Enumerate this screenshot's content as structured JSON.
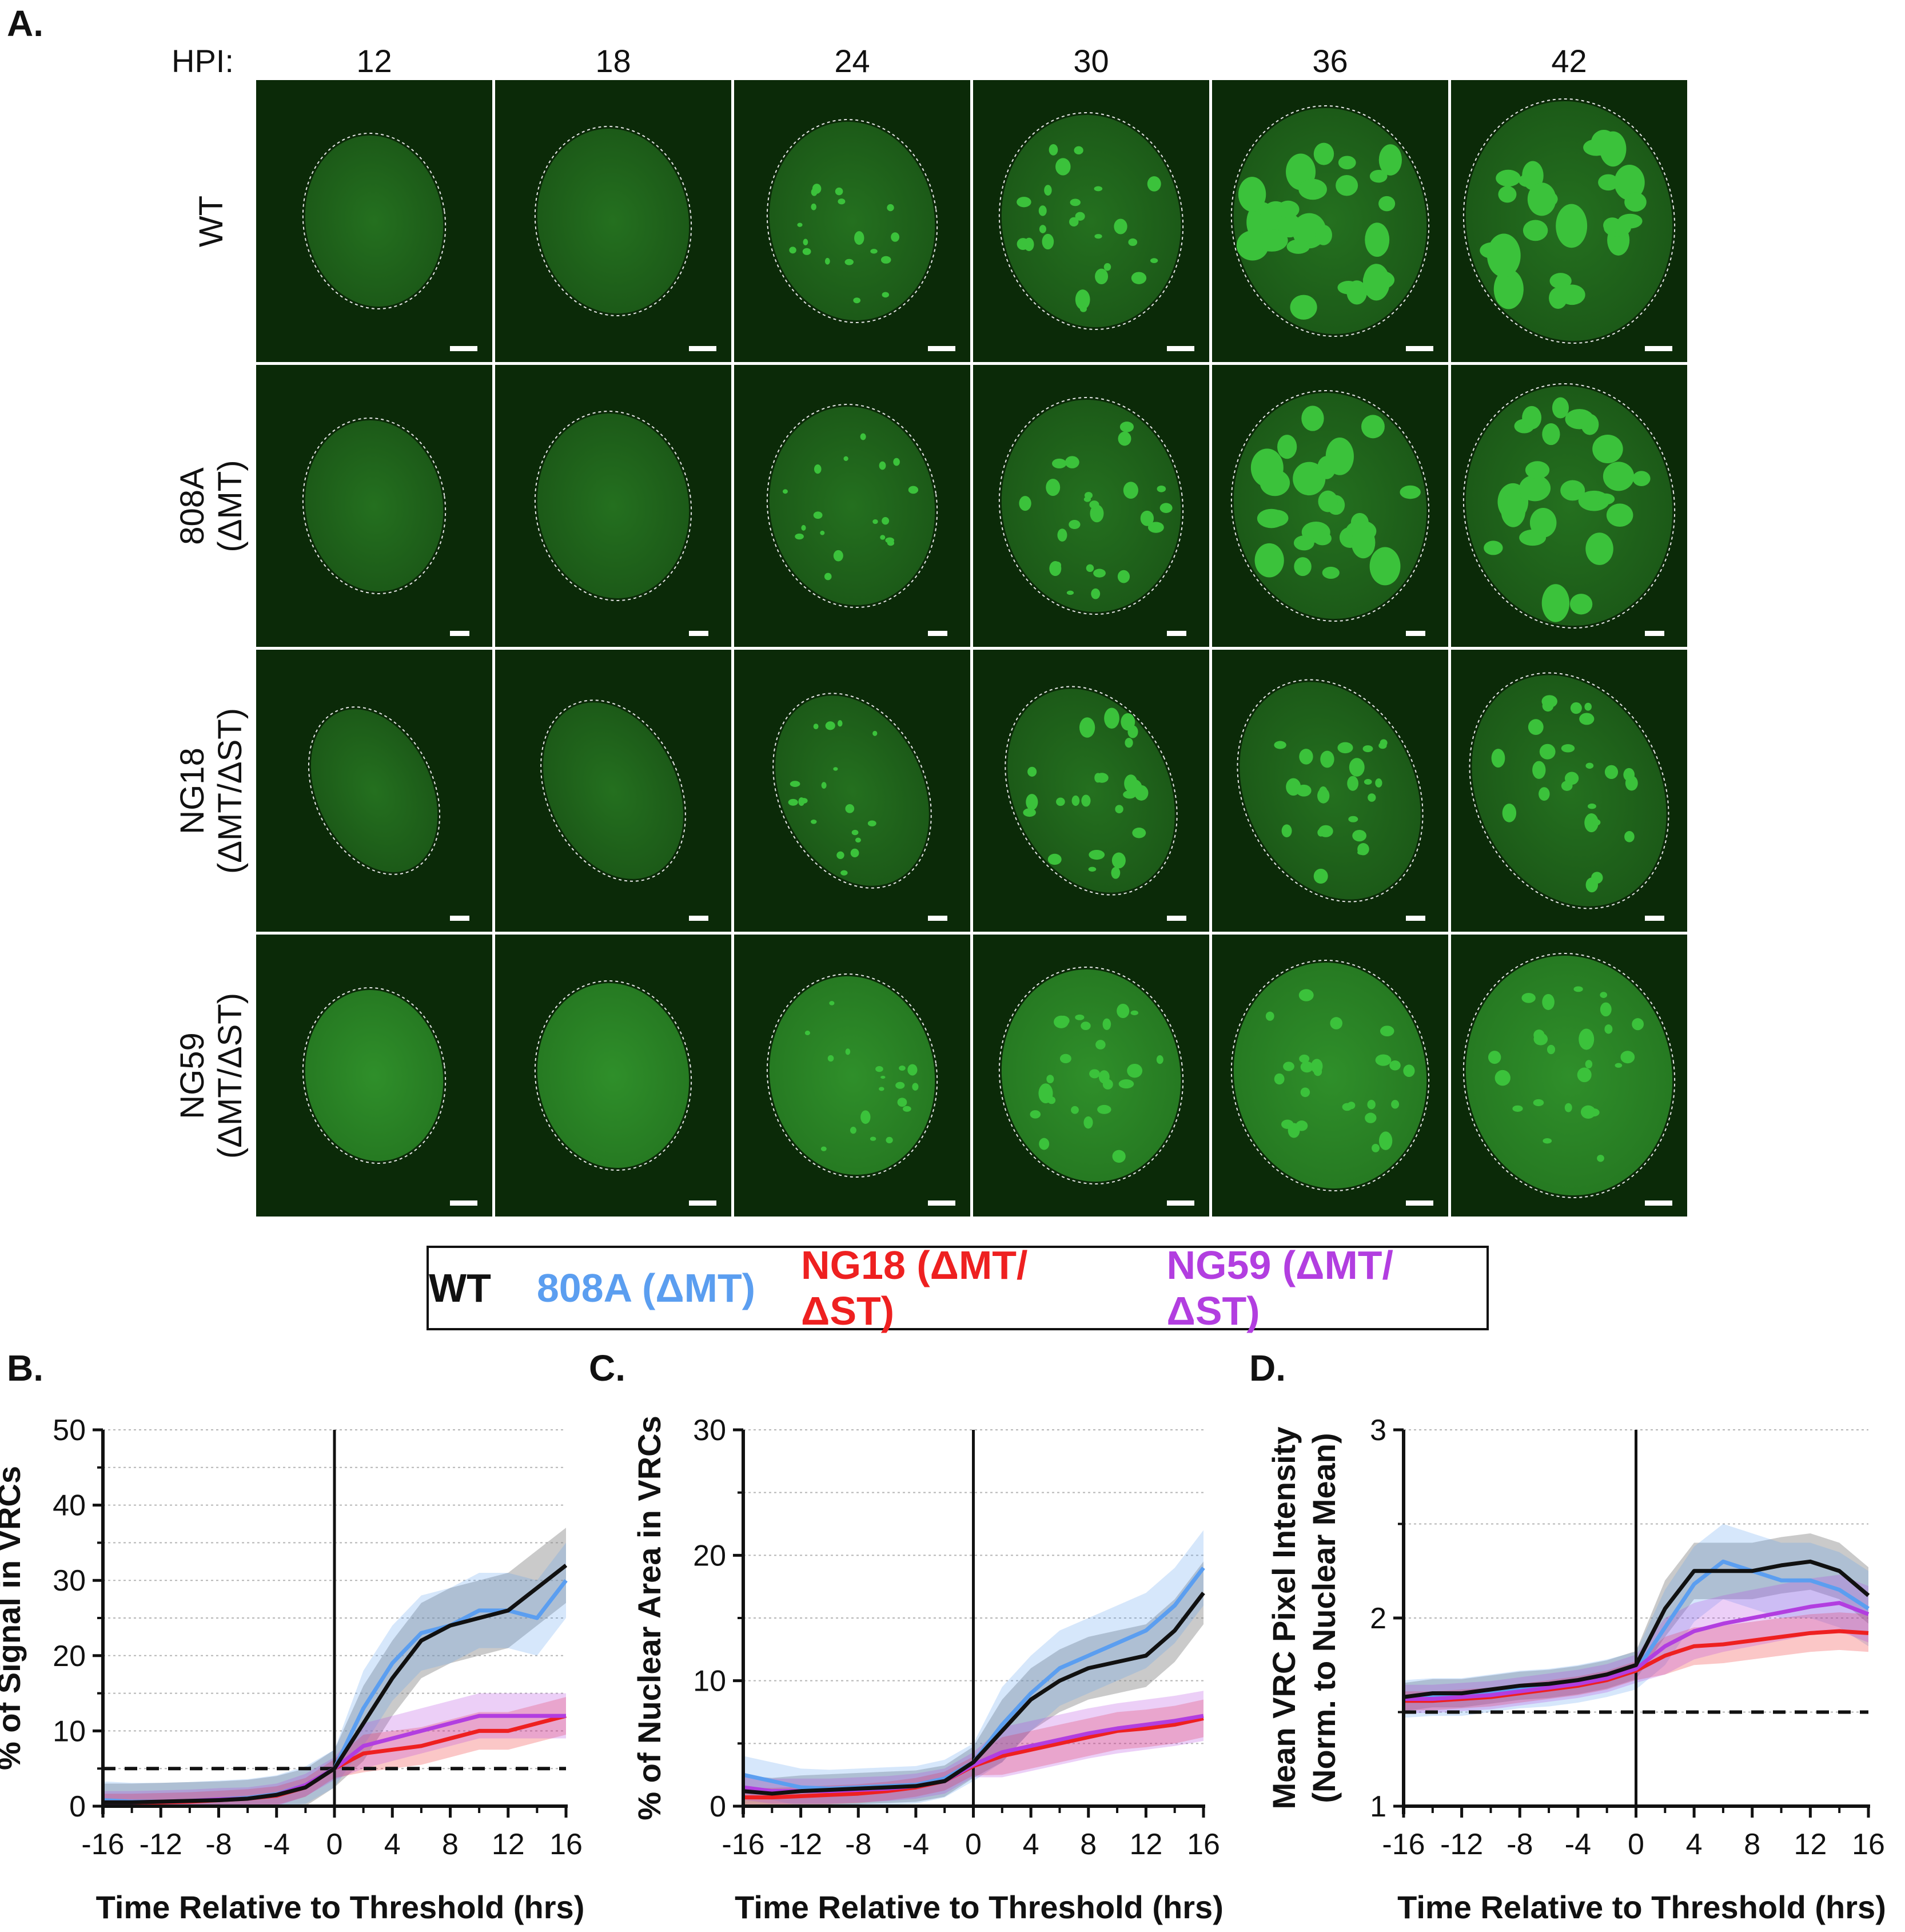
{
  "panel_labels": {
    "a": "A.",
    "b": "B.",
    "c": "C.",
    "d": "D."
  },
  "hpi": {
    "label": "HPI:",
    "values": [
      "12",
      "18",
      "24",
      "30",
      "36",
      "42"
    ]
  },
  "rows": [
    {
      "line1": "WT",
      "line2": ""
    },
    {
      "line1": "808A",
      "line2": "(ΔMT)"
    },
    {
      "line1": "NG18",
      "line2": "(ΔMT/ΔST)"
    },
    {
      "line1": "NG59",
      "line2": "(ΔMT/ΔST)"
    }
  ],
  "colors": {
    "WT": "#111111",
    "808A": "#5b9ef0",
    "NG18": "#ee2020",
    "NG59": "#b23ee0",
    "cell": "#3bc23b"
  },
  "legend": [
    {
      "label": "WT",
      "color": "#111111"
    },
    {
      "label": "808A (ΔMT)",
      "color": "#5b9ef0"
    },
    {
      "label": "NG18 (ΔMT/ΔST)",
      "color": "#ee2020"
    },
    {
      "label": "NG59 (ΔMT/ΔST)",
      "color": "#b23ee0"
    }
  ],
  "chart_data": [
    {
      "id": "b",
      "type": "line",
      "ylabel": "% of Signal in VRCs",
      "xlabel": "Time Relative to Threshold  (hrs)",
      "xlim": [
        -16,
        16
      ],
      "ylim": [
        0,
        50
      ],
      "xticks": [
        "-16",
        "-12",
        "-8",
        "-4",
        "0",
        "4",
        "8",
        "12",
        "16"
      ],
      "yticks": [
        "0",
        "10",
        "20",
        "30",
        "40",
        "50"
      ],
      "threshold": 5,
      "grid": true,
      "x": [
        -16,
        -14,
        -12,
        -10,
        -8,
        -6,
        -4,
        -2,
        0,
        2,
        4,
        6,
        8,
        10,
        12,
        14,
        16
      ],
      "series": [
        {
          "name": "WT",
          "values": [
            0.5,
            0.5,
            0.6,
            0.7,
            0.8,
            1.0,
            1.5,
            2.5,
            5,
            11,
            17,
            22,
            24,
            25,
            26,
            29,
            32
          ],
          "band": 5
        },
        {
          "name": "808A (ΔMT)",
          "values": [
            0.8,
            0.6,
            0.6,
            0.7,
            0.9,
            1.1,
            1.6,
            2.8,
            5,
            13,
            19,
            23,
            24,
            26,
            26,
            25,
            30
          ],
          "band": 5
        },
        {
          "name": "NG18 (ΔMT/ΔST)",
          "values": [
            0.4,
            0.4,
            0.5,
            0.6,
            0.8,
            1.0,
            1.4,
            2.5,
            5,
            7,
            7.5,
            8,
            9,
            10,
            10,
            11,
            12
          ],
          "band": 2.5
        },
        {
          "name": "NG59 (ΔMT/ΔST)",
          "values": [
            0.5,
            0.5,
            0.6,
            0.7,
            0.9,
            1.0,
            1.5,
            2.8,
            5,
            8,
            9,
            10,
            11,
            12,
            12,
            12,
            12
          ],
          "band": 3
        }
      ]
    },
    {
      "id": "c",
      "type": "line",
      "ylabel": "% of Nuclear Area in VRCs",
      "xlabel": "Time Relative to Threshold  (hrs)",
      "xlim": [
        -16,
        16
      ],
      "ylim": [
        0,
        30
      ],
      "xticks": [
        "-16",
        "-12",
        "-8",
        "-4",
        "0",
        "4",
        "8",
        "12",
        "16"
      ],
      "yticks": [
        "0",
        "10",
        "20",
        "30"
      ],
      "threshold": null,
      "grid": true,
      "x": [
        -16,
        -14,
        -12,
        -10,
        -8,
        -6,
        -4,
        -2,
        0,
        2,
        4,
        6,
        8,
        10,
        12,
        14,
        16
      ],
      "series": [
        {
          "name": "WT",
          "values": [
            1.2,
            1.0,
            1.2,
            1.3,
            1.4,
            1.5,
            1.6,
            2.0,
            3.5,
            6,
            8.5,
            10,
            11,
            11.5,
            12,
            14,
            17
          ],
          "band": 2.5
        },
        {
          "name": "808A (ΔMT)",
          "values": [
            2.5,
            2.0,
            1.5,
            1.4,
            1.5,
            1.6,
            1.7,
            2.2,
            3.5,
            6.5,
            9,
            11,
            12,
            13,
            14,
            16,
            19
          ],
          "band": 3
        },
        {
          "name": "NG18 (ΔMT/ΔST)",
          "values": [
            0.7,
            0.7,
            0.8,
            0.9,
            1.0,
            1.2,
            1.5,
            2.0,
            3.2,
            4.0,
            4.5,
            5.0,
            5.5,
            6.0,
            6.2,
            6.5,
            7.0
          ],
          "band": 1.5
        },
        {
          "name": "NG59 (ΔMT/ΔST)",
          "values": [
            1.5,
            1.2,
            1.2,
            1.2,
            1.3,
            1.4,
            1.6,
            2.0,
            3.3,
            4.3,
            4.8,
            5.3,
            5.8,
            6.2,
            6.5,
            6.8,
            7.2
          ],
          "band": 2
        }
      ]
    },
    {
      "id": "d",
      "type": "line",
      "ylabel": "Mean VRC Pixel Intensity",
      "ylabel2": "(Norm. to Nuclear Mean)",
      "xlabel": "Time Relative to Threshold  (hrs)",
      "xlim": [
        -16,
        16
      ],
      "ylim": [
        1,
        3
      ],
      "xticks": [
        "-16",
        "-12",
        "-8",
        "-4",
        "0",
        "4",
        "8",
        "12",
        "16"
      ],
      "yticks": [
        "1",
        "2",
        "3"
      ],
      "threshold": 1.5,
      "grid": true,
      "x": [
        -16,
        -14,
        -12,
        -10,
        -8,
        -6,
        -4,
        -2,
        0,
        2,
        4,
        6,
        8,
        10,
        12,
        14,
        16
      ],
      "series": [
        {
          "name": "WT",
          "values": [
            1.58,
            1.6,
            1.6,
            1.62,
            1.64,
            1.65,
            1.67,
            1.7,
            1.75,
            2.05,
            2.25,
            2.25,
            2.25,
            2.28,
            2.3,
            2.25,
            2.12
          ],
          "band": 0.15
        },
        {
          "name": "808A (ΔMT)",
          "values": [
            1.57,
            1.58,
            1.58,
            1.6,
            1.62,
            1.63,
            1.65,
            1.68,
            1.72,
            1.95,
            2.18,
            2.3,
            2.25,
            2.2,
            2.2,
            2.15,
            2.05
          ],
          "band": 0.2
        },
        {
          "name": "NG18 (ΔMT/ΔST)",
          "values": [
            1.56,
            1.56,
            1.57,
            1.58,
            1.6,
            1.62,
            1.64,
            1.67,
            1.72,
            1.8,
            1.85,
            1.86,
            1.88,
            1.9,
            1.92,
            1.93,
            1.92
          ],
          "band": 0.1
        },
        {
          "name": "NG59 (ΔMT/ΔST)",
          "values": [
            1.57,
            1.57,
            1.58,
            1.59,
            1.61,
            1.63,
            1.65,
            1.68,
            1.73,
            1.85,
            1.93,
            1.97,
            2.0,
            2.03,
            2.06,
            2.08,
            2.02
          ],
          "band": 0.15
        }
      ]
    }
  ]
}
